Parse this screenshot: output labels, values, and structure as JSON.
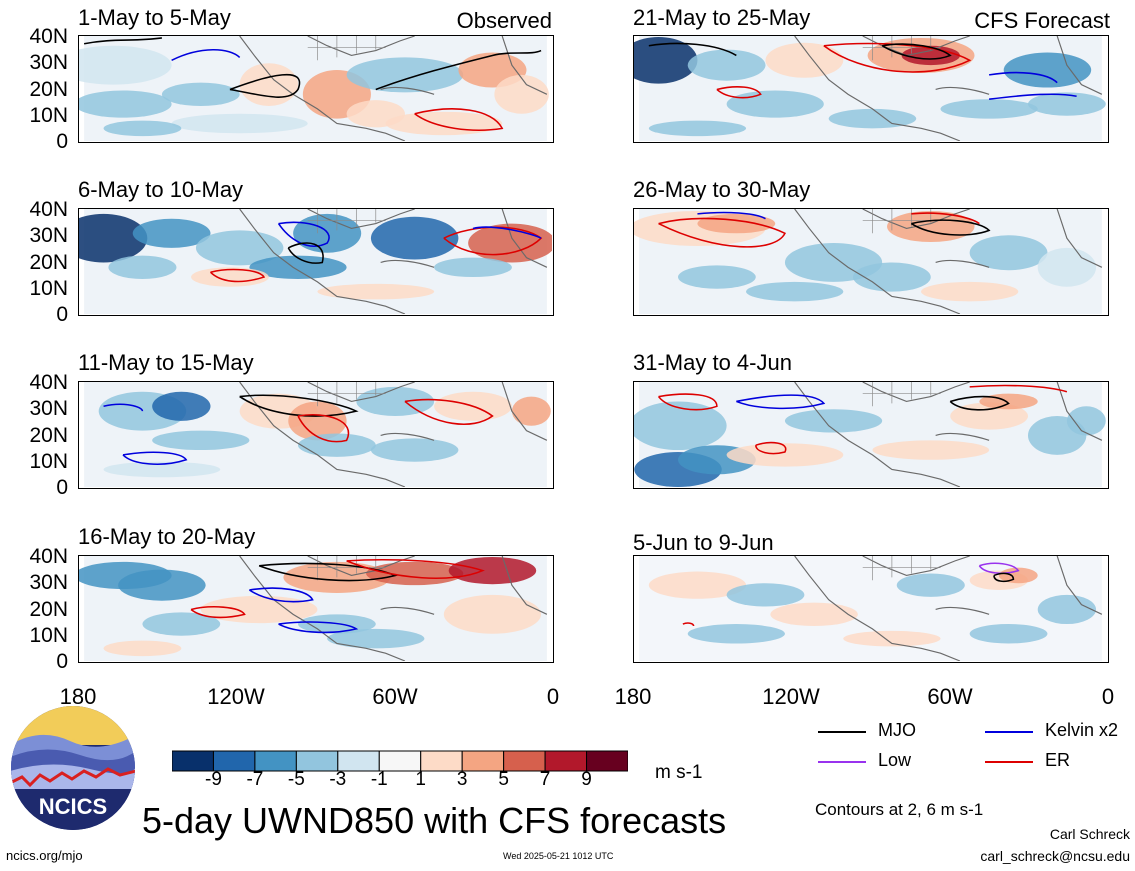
{
  "panels_left": [
    {
      "title": "1-May to 5-May",
      "corner": "Observed"
    },
    {
      "title": "6-May to 10-May",
      "corner": ""
    },
    {
      "title": "11-May to 15-May",
      "corner": ""
    },
    {
      "title": "16-May to 20-May",
      "corner": ""
    }
  ],
  "panels_right": [
    {
      "title": "21-May to 25-May",
      "corner": "CFS Forecast"
    },
    {
      "title": "26-May to 30-May",
      "corner": ""
    },
    {
      "title": "31-May to 4-Jun",
      "corner": ""
    },
    {
      "title": "5-Jun to 9-Jun",
      "corner": ""
    }
  ],
  "lat_ticks": [
    "40N",
    "30N",
    "20N",
    "10N",
    "0"
  ],
  "lon_ticks": [
    "180",
    "120W",
    "60W",
    "0"
  ],
  "colorbar": {
    "labels": [
      "-9",
      "-7",
      "-5",
      "-3",
      "-1",
      "1",
      "3",
      "5",
      "7",
      "9"
    ],
    "colors": [
      "#08306b",
      "#2166ac",
      "#4393c3",
      "#92c5de",
      "#d1e5f0",
      "#f7f7f7",
      "#fddbc7",
      "#f4a582",
      "#d6604d",
      "#b2182b",
      "#67001f"
    ],
    "units": "m s-1"
  },
  "legend": [
    {
      "label": "MJO",
      "color": "#000000"
    },
    {
      "label": "Kelvin x2",
      "color": "#0000dd"
    },
    {
      "label": "Low",
      "color": "#9933ee"
    },
    {
      "label": "ER",
      "color": "#dd0000"
    }
  ],
  "logo_text": "NCICS",
  "main_title": "5-day UWND850 with CFS forecasts",
  "contour_note": "Contours at 2, 6 m s-1",
  "footer_url": "ncics.org/mjo",
  "timestamp": "Wed 2025-05-21 1012 UTC",
  "author": "Carl Schreck",
  "email": "carl_schreck@ncsu.edu"
}
